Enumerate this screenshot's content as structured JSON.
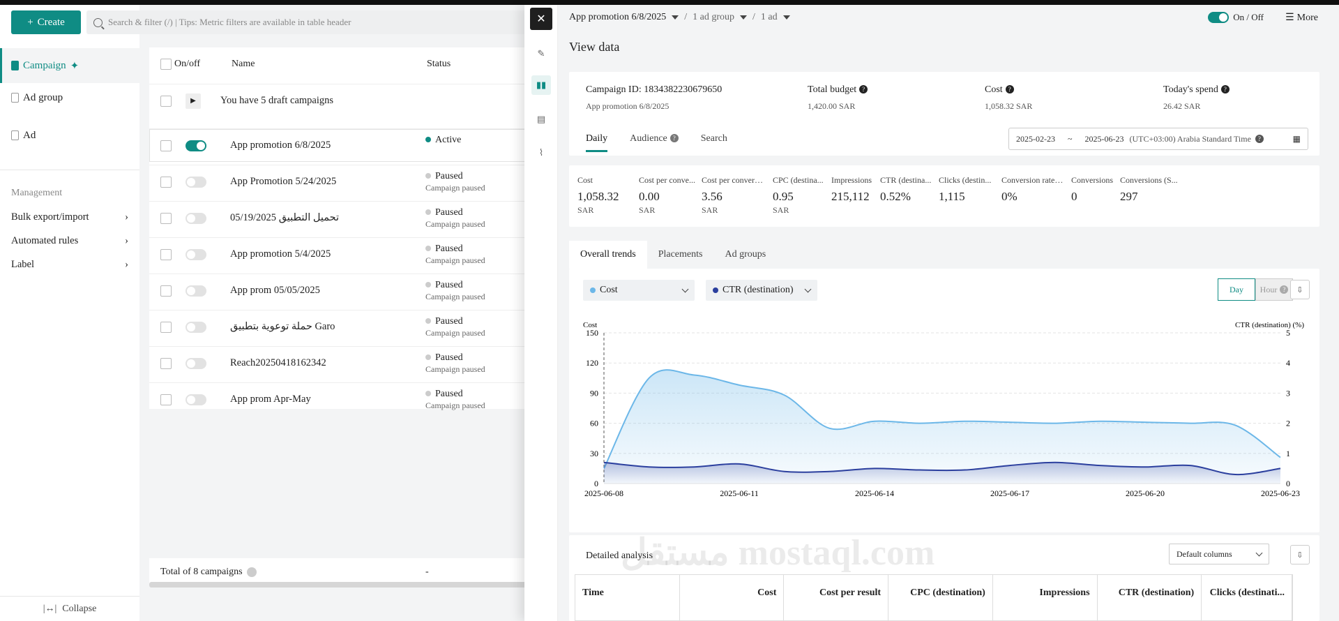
{
  "left": {
    "create_label": "Create",
    "search_placeholder": "Search & filter (/) | Tips: Metric filters are available in table header",
    "nav": [
      {
        "label": "Campaign"
      },
      {
        "label": "Ad group"
      },
      {
        "label": "Ad"
      }
    ],
    "management_title": "Management",
    "management": [
      {
        "label": "Bulk export/import"
      },
      {
        "label": "Automated rules"
      },
      {
        "label": "Label"
      }
    ],
    "collapse_label": "Collapse"
  },
  "table": {
    "headers": {
      "onoff": "On/off",
      "name": "Name",
      "status": "Status"
    },
    "draft_text": "You have 5 draft campaigns",
    "rows": [
      {
        "name": "App promotion 6/8/2025",
        "status": "Active",
        "sub": "",
        "on": true
      },
      {
        "name": "App Promotion 5/24/2025",
        "status": "Paused",
        "sub": "Campaign paused",
        "on": false
      },
      {
        "name": "تحميل التطبيق 05/19/2025",
        "status": "Paused",
        "sub": "Campaign paused",
        "on": false
      },
      {
        "name": "App promotion 5/4/2025",
        "status": "Paused",
        "sub": "Campaign paused",
        "on": false
      },
      {
        "name": "App prom 05/05/2025",
        "status": "Paused",
        "sub": "Campaign paused",
        "on": false
      },
      {
        "name": "حملة توعوية بتطبيق Garo",
        "status": "Paused",
        "sub": "Campaign paused",
        "on": false
      },
      {
        "name": "Reach20250418162342",
        "status": "Paused",
        "sub": "Campaign paused",
        "on": false
      },
      {
        "name": "App prom Apr-May",
        "status": "Paused",
        "sub": "Campaign paused",
        "on": false
      }
    ],
    "footer_total": "Total of 8 campaigns",
    "footer_status": "-"
  },
  "drawer": {
    "breadcrumb": {
      "campaign": "App promotion 6/8/2025",
      "adgroup": "1 ad group",
      "ad": "1 ad",
      "sep": "/"
    },
    "onoff_label": "On / Off",
    "more_label": "More",
    "title": "View data",
    "summary": {
      "campaign_id": "Campaign ID: 1834382230679650",
      "campaign_name": "App promotion 6/8/2025",
      "total_budget_label": "Total budget",
      "total_budget_value": "1,420.00 SAR",
      "cost_label": "Cost",
      "cost_value": "1,058.32 SAR",
      "today_label": "Today's spend",
      "today_value": "26.42 SAR"
    },
    "view_tabs": [
      {
        "label": "Daily"
      },
      {
        "label": "Audience"
      },
      {
        "label": "Search"
      }
    ],
    "date_start": "2025-02-23",
    "date_sep": "~",
    "date_end": "2025-06-23",
    "timezone": "(UTC+03:00) Arabia Standard Time",
    "metrics": [
      {
        "label": "Cost",
        "value": "1,058.32",
        "unit": "SAR"
      },
      {
        "label": "Cost per conve...",
        "value": "0.00",
        "unit": "SAR"
      },
      {
        "label": "Cost per conversion (S...",
        "value": "3.56",
        "unit": "SAR"
      },
      {
        "label": "CPC (destina...",
        "value": "0.95",
        "unit": "SAR"
      },
      {
        "label": "Impressions",
        "value": "215,112",
        "unit": ""
      },
      {
        "label": "CTR (destina...",
        "value": "0.52%",
        "unit": ""
      },
      {
        "label": "Clicks (destin...",
        "value": "1,115",
        "unit": ""
      },
      {
        "label": "Conversion rate (...",
        "value": "0%",
        "unit": ""
      },
      {
        "label": "Conversions",
        "value": "0",
        "unit": ""
      },
      {
        "label": "Conversions (S...",
        "value": "297",
        "unit": ""
      }
    ],
    "trend_tabs": [
      {
        "label": "Overall trends"
      },
      {
        "label": "Placements"
      },
      {
        "label": "Ad groups"
      }
    ],
    "metric_select_1": "Cost",
    "metric_select_2": "CTR (destination)",
    "gran_day": "Day",
    "gran_hour": "Hour",
    "detail_title": "Detailed analysis",
    "columns_select": "Default columns",
    "detail_headers": [
      {
        "label": "Time"
      },
      {
        "label": "Cost"
      },
      {
        "label": "Cost per result"
      },
      {
        "label": "CPC (destination)"
      },
      {
        "label": "Impressions"
      },
      {
        "label": "CTR (destination)"
      },
      {
        "label": "Clicks (destinati..."
      }
    ],
    "watermark": "مستقل mostaql.com"
  },
  "colors": {
    "accent": "#0f8c84",
    "cost_series": "#6cb7e8",
    "ctr_series": "#2b3f9e"
  },
  "chart_data": {
    "type": "line",
    "ylabel": "Cost",
    "y2label": "CTR (destination) (%)",
    "x": [
      "2025-06-08",
      "2025-06-09",
      "2025-06-10",
      "2025-06-11",
      "2025-06-12",
      "2025-06-13",
      "2025-06-14",
      "2025-06-15",
      "2025-06-16",
      "2025-06-17",
      "2025-06-18",
      "2025-06-19",
      "2025-06-20",
      "2025-06-21",
      "2025-06-22",
      "2025-06-23"
    ],
    "x_ticks": [
      "2025-06-08",
      "2025-06-11",
      "2025-06-14",
      "2025-06-17",
      "2025-06-20",
      "2025-06-23"
    ],
    "ylim": [
      0,
      150
    ],
    "y_ticks": [
      0,
      30,
      60,
      90,
      120,
      150
    ],
    "y2lim": [
      0,
      5
    ],
    "y2_ticks": [
      0,
      1,
      2,
      3,
      4,
      5
    ],
    "series": [
      {
        "name": "Cost",
        "axis": "left",
        "values": [
          15,
          105,
          108,
          98,
          88,
          55,
          62,
          60,
          62,
          61,
          60,
          62,
          61,
          60,
          58,
          26
        ]
      },
      {
        "name": "CTR (destination)",
        "axis": "right",
        "values": [
          0.7,
          0.55,
          0.55,
          0.65,
          0.4,
          0.4,
          0.5,
          0.45,
          0.45,
          0.6,
          0.7,
          0.6,
          0.55,
          0.6,
          0.3,
          0.5
        ]
      }
    ]
  }
}
